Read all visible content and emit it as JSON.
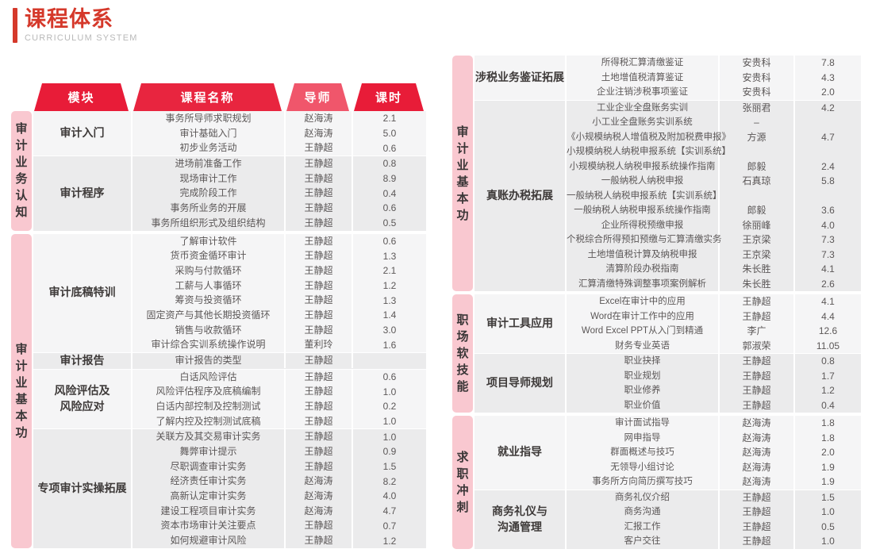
{
  "header": {
    "title": "课程体系",
    "subtitle": "CURRICULUM SYSTEM"
  },
  "colors": {
    "title-red": "#d5392b",
    "pink": "#f9c8d0",
    "block-light": "#f5f5f6",
    "block-dark": "#ebebec",
    "row-text": "#5b5757",
    "module-text": "#3e3a39"
  },
  "columns": [
    {
      "label": "模块",
      "color": "#e81c38"
    },
    {
      "label": "课程名称",
      "color": "#e8253f"
    },
    {
      "label": "导师",
      "color": "#f0566b"
    },
    {
      "label": "课时",
      "color": "#e81c38"
    }
  ],
  "tables": [
    {
      "id": "left",
      "groups": [
        {
          "label": "审计业务认知",
          "modules": [
            {
              "name": "审计入门",
              "rows": [
                [
                  "事务所导师求职规划",
                  "赵海涛",
                  "2.1"
                ],
                [
                  "审计基础入门",
                  "赵海涛",
                  "5.0"
                ],
                [
                  "初步业务活动",
                  "王静超",
                  "0.6"
                ]
              ]
            },
            {
              "name": "审计程序",
              "rows": [
                [
                  "进场前准备工作",
                  "王静超",
                  "0.8"
                ],
                [
                  "现场审计工作",
                  "王静超",
                  "8.9"
                ],
                [
                  "完成阶段工作",
                  "王静超",
                  "0.4"
                ],
                [
                  "事务所业务的开展",
                  "王静超",
                  "0.6"
                ],
                [
                  "事务所组织形式及组织结构",
                  "王静超",
                  "0.5"
                ]
              ]
            }
          ]
        },
        {
          "label": "审计业基本功",
          "modules": [
            {
              "name": "审计底稿特训",
              "rows": [
                [
                  "了解审计软件",
                  "王静超",
                  "0.6"
                ],
                [
                  "货币资金循环审计",
                  "王静超",
                  "1.3"
                ],
                [
                  "采购与付款循环",
                  "王静超",
                  "2.1"
                ],
                [
                  "工薪与人事循环",
                  "王静超",
                  "1.2"
                ],
                [
                  "筹资与投资循环",
                  "王静超",
                  "1.3"
                ],
                [
                  "固定资产与其他长期投资循环",
                  "王静超",
                  "1.4"
                ],
                [
                  "销售与收款循环",
                  "王静超",
                  "3.0"
                ],
                [
                  "审计综合实训系统操作说明",
                  "董利玲",
                  "1.6"
                ]
              ]
            },
            {
              "name": "审计报告",
              "rows": [
                [
                  "审计报告的类型",
                  "王静超",
                  ""
                ]
              ]
            },
            {
              "name": "风险评估及\n风险应对",
              "rows": [
                [
                  "白话风险评估",
                  "王静超",
                  "0.6"
                ],
                [
                  "风险评估程序及底稿编制",
                  "王静超",
                  "1.0"
                ],
                [
                  "白话内部控制及控制测试",
                  "王静超",
                  "0.2"
                ],
                [
                  "了解内控及控制测试底稿",
                  "王静超",
                  "1.0"
                ]
              ]
            },
            {
              "name": "专项审计实操拓展",
              "rows": [
                [
                  "关联方及其交易审计实务",
                  "王静超",
                  "1.0"
                ],
                [
                  "舞弊审计提示",
                  "王静超",
                  "0.9"
                ],
                [
                  "尽职调查审计实务",
                  "王静超",
                  "1.5"
                ],
                [
                  "经济责任审计实务",
                  "赵海涛",
                  "8.2"
                ],
                [
                  "高新认定审计实务",
                  "赵海涛",
                  "4.0"
                ],
                [
                  "建设工程项目审计实务",
                  "赵海涛",
                  "4.7"
                ],
                [
                  "资本市场审计关注要点",
                  "王静超",
                  "0.7"
                ],
                [
                  "如何规避审计风险",
                  "王静超",
                  "1.2"
                ]
              ]
            }
          ]
        }
      ]
    },
    {
      "id": "right",
      "groups": [
        {
          "label": "审计业基本功",
          "modules": [
            {
              "name": "涉税业务鉴证拓展",
              "rows": [
                [
                  "所得税汇算清缴鉴证",
                  "安贵科",
                  "7.8"
                ],
                [
                  "土地增值税清算鉴证",
                  "安贵科",
                  "4.3"
                ],
                [
                  "企业注销涉税事项鉴证",
                  "安贵科",
                  "2.0"
                ]
              ]
            },
            {
              "name": "真账办税拓展",
              "rows": [
                [
                  "工业企业全盘账务实训",
                  "张丽君",
                  "4.2"
                ],
                [
                  "小工业全盘账务实训系统",
                  "–",
                  ""
                ],
                [
                  "《小规模纳税人增值税及附加税费申报》",
                  "方源",
                  "4.7"
                ],
                [
                  "小规模纳税人纳税申报系统【实训系统】",
                  "",
                  ""
                ],
                [
                  "小规模纳税人纳税申报系统操作指南",
                  "郎毅",
                  "2.4"
                ],
                [
                  "一般纳税人纳税申报",
                  "石真琼",
                  "5.8"
                ],
                [
                  "一般纳税人纳税申报系统【实训系统】",
                  "",
                  ""
                ],
                [
                  "一般纳税人纳税申报系统操作指南",
                  "郎毅",
                  "3.6"
                ],
                [
                  "企业所得税预缴申报",
                  "徐丽峰",
                  "4.0"
                ],
                [
                  "个税综合所得预扣预缴与汇算清缴实务",
                  "王京梁",
                  "7.3"
                ],
                [
                  "土地增值税计算及纳税申报",
                  "王京梁",
                  "7.3"
                ],
                [
                  "清算阶段办税指南",
                  "朱长胜",
                  "4.1"
                ],
                [
                  "汇算清缴特殊调整事项案例解析",
                  "朱长胜",
                  "2.6"
                ]
              ]
            }
          ]
        },
        {
          "label": "职场软技能",
          "modules": [
            {
              "name": "审计工具应用",
              "rows": [
                [
                  "Excel在审计中的应用",
                  "王静超",
                  "4.1"
                ],
                [
                  "Word在审计工作中的应用",
                  "王静超",
                  "4.4"
                ],
                [
                  "Word Excel PPT从入门到精通",
                  "李广",
                  "12.6"
                ],
                [
                  "财务专业英语",
                  "郭淑荣",
                  "11.05"
                ]
              ]
            },
            {
              "name": "项目导师规划",
              "rows": [
                [
                  "职业抉择",
                  "王静超",
                  "0.8"
                ],
                [
                  "职业规划",
                  "王静超",
                  "1.7"
                ],
                [
                  "职业修养",
                  "王静超",
                  "1.2"
                ],
                [
                  "职业价值",
                  "王静超",
                  "0.4"
                ]
              ]
            }
          ]
        },
        {
          "label": "求职冲刺",
          "modules": [
            {
              "name": "就业指导",
              "rows": [
                [
                  "审计面试指导",
                  "赵海涛",
                  "1.8"
                ],
                [
                  "网申指导",
                  "赵海涛",
                  "1.8"
                ],
                [
                  "群面概述与技巧",
                  "赵海涛",
                  "2.0"
                ],
                [
                  "无领导小组讨论",
                  "赵海涛",
                  "1.9"
                ],
                [
                  "事务所方向简历撰写技巧",
                  "赵海涛",
                  "1.9"
                ]
              ]
            },
            {
              "name": "商务礼仪与\n沟通管理",
              "rows": [
                [
                  "商务礼仪介绍",
                  "王静超",
                  "1.5"
                ],
                [
                  "商务沟通",
                  "王静超",
                  "1.0"
                ],
                [
                  "汇报工作",
                  "王静超",
                  "0.5"
                ],
                [
                  "客户交往",
                  "王静超",
                  "1.0"
                ]
              ]
            }
          ]
        }
      ]
    }
  ]
}
